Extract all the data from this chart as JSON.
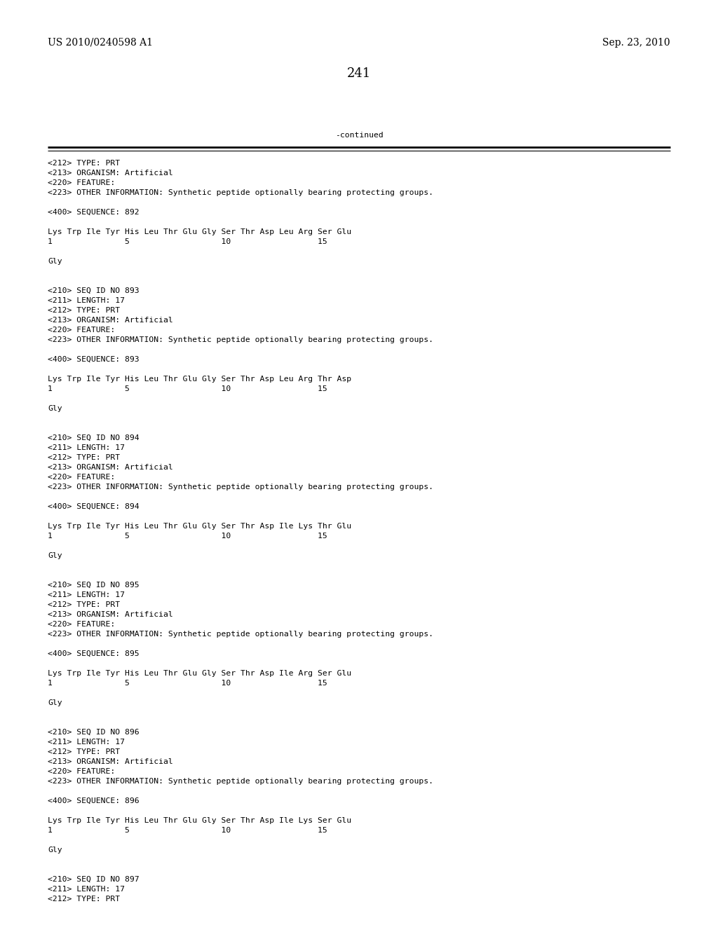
{
  "header_left": "US 2010/0240598 A1",
  "header_right": "Sep. 23, 2010",
  "page_number": "241",
  "continued_label": "-continued",
  "background_color": "#ffffff",
  "text_color": "#000000",
  "font_size_header": 10.0,
  "font_size_page": 13.0,
  "font_size_mono": 8.2,
  "content": [
    "<212> TYPE: PRT",
    "<213> ORGANISM: Artificial",
    "<220> FEATURE:",
    "<223> OTHER INFORMATION: Synthetic peptide optionally bearing protecting groups.",
    "",
    "<400> SEQUENCE: 892",
    "",
    "Lys Trp Ile Tyr His Leu Thr Glu Gly Ser Thr Asp Leu Arg Ser Glu",
    "1               5                   10                  15",
    "",
    "Gly",
    "",
    "",
    "<210> SEQ ID NO 893",
    "<211> LENGTH: 17",
    "<212> TYPE: PRT",
    "<213> ORGANISM: Artificial",
    "<220> FEATURE:",
    "<223> OTHER INFORMATION: Synthetic peptide optionally bearing protecting groups.",
    "",
    "<400> SEQUENCE: 893",
    "",
    "Lys Trp Ile Tyr His Leu Thr Glu Gly Ser Thr Asp Leu Arg Thr Asp",
    "1               5                   10                  15",
    "",
    "Gly",
    "",
    "",
    "<210> SEQ ID NO 894",
    "<211> LENGTH: 17",
    "<212> TYPE: PRT",
    "<213> ORGANISM: Artificial",
    "<220> FEATURE:",
    "<223> OTHER INFORMATION: Synthetic peptide optionally bearing protecting groups.",
    "",
    "<400> SEQUENCE: 894",
    "",
    "Lys Trp Ile Tyr His Leu Thr Glu Gly Ser Thr Asp Ile Lys Thr Glu",
    "1               5                   10                  15",
    "",
    "Gly",
    "",
    "",
    "<210> SEQ ID NO 895",
    "<211> LENGTH: 17",
    "<212> TYPE: PRT",
    "<213> ORGANISM: Artificial",
    "<220> FEATURE:",
    "<223> OTHER INFORMATION: Synthetic peptide optionally bearing protecting groups.",
    "",
    "<400> SEQUENCE: 895",
    "",
    "Lys Trp Ile Tyr His Leu Thr Glu Gly Ser Thr Asp Ile Arg Ser Glu",
    "1               5                   10                  15",
    "",
    "Gly",
    "",
    "",
    "<210> SEQ ID NO 896",
    "<211> LENGTH: 17",
    "<212> TYPE: PRT",
    "<213> ORGANISM: Artificial",
    "<220> FEATURE:",
    "<223> OTHER INFORMATION: Synthetic peptide optionally bearing protecting groups.",
    "",
    "<400> SEQUENCE: 896",
    "",
    "Lys Trp Ile Tyr His Leu Thr Glu Gly Ser Thr Asp Ile Lys Ser Glu",
    "1               5                   10                  15",
    "",
    "Gly",
    "",
    "",
    "<210> SEQ ID NO 897",
    "<211> LENGTH: 17",
    "<212> TYPE: PRT"
  ]
}
